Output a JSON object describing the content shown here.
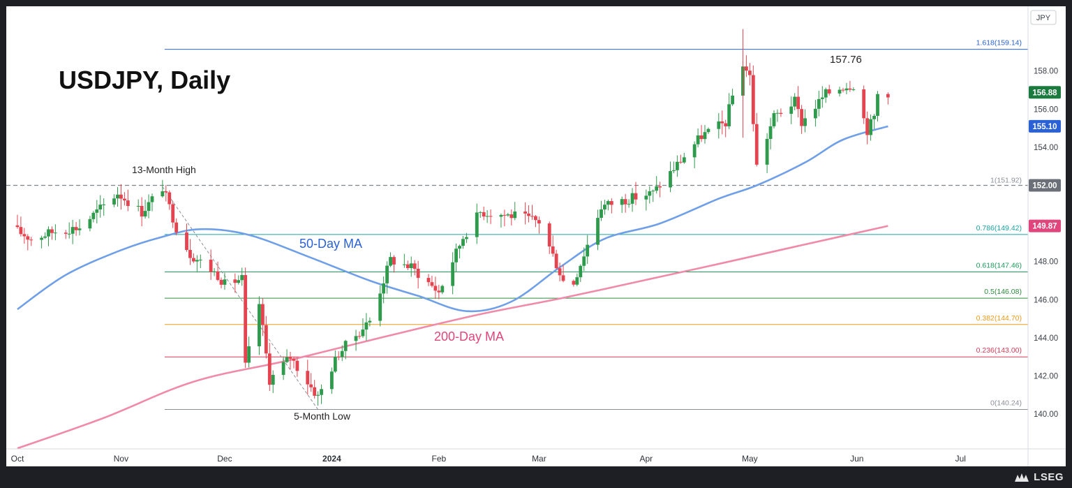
{
  "chart_data": {
    "type": "candlestick",
    "title": "USDJPY, Daily",
    "currency": "JPY",
    "ylim": [
      137.9,
      160.6
    ],
    "y_ticks": [
      "140.00",
      "142.00",
      "144.00",
      "146.00",
      "148.00",
      "150.00",
      "152.00",
      "154.00",
      "156.00",
      "158.00"
    ],
    "x_ticks": [
      "Oct",
      "Nov",
      "Dec",
      "2024",
      "Feb",
      "Mar",
      "Apr",
      "May",
      "Jun",
      "Jul"
    ],
    "price_badges": [
      {
        "value": "156.88",
        "color": "#1b7a3e"
      },
      {
        "value": "155.10",
        "color": "#2a62d6"
      },
      {
        "value": "152.00",
        "color": "#6b7078"
      },
      {
        "value": "149.87",
        "color": "#e0457b"
      }
    ],
    "fib_levels": [
      {
        "label": "1.618(159.14)",
        "value": 159.14,
        "color": "#2a62d6"
      },
      {
        "label": "1(151.92)",
        "value": 151.92,
        "color": "#8a8f98"
      },
      {
        "label": "0.786(149.42)",
        "value": 149.42,
        "color": "#1aa3a3"
      },
      {
        "label": "0.618(147.46)",
        "value": 147.46,
        "color": "#1e9b5b"
      },
      {
        "label": "0.5(146.08)",
        "value": 146.08,
        "color": "#2e8b3e"
      },
      {
        "label": "0.382(144.70)",
        "value": 144.7,
        "color": "#f09a1a"
      },
      {
        "label": "0.236(143.00)",
        "value": 143.0,
        "color": "#d63a57"
      },
      {
        "label": "0(140.24)",
        "value": 140.24,
        "color": "#8a8f98"
      }
    ],
    "horizontal_dashed": {
      "value": 152.0,
      "label": "13-Month High"
    },
    "annotations": [
      {
        "text": "13-Month High"
      },
      {
        "text": "5-Month Low"
      },
      {
        "text": "157.76"
      },
      {
        "text": "50-Day MA",
        "color": "#2a62d6"
      },
      {
        "text": "200-Day MA",
        "color": "#e0457b"
      }
    ],
    "series": [
      {
        "name": "50-Day MA",
        "color": "#6f9fe8",
        "points": [
          [
            "Oct 2",
            145.5
          ],
          [
            "Oct 16",
            147.3
          ],
          [
            "Nov 1",
            148.6
          ],
          [
            "Nov 13",
            149.3
          ],
          [
            "Nov 24",
            149.7
          ],
          [
            "Dec 8",
            149.4
          ],
          [
            "Dec 26",
            148.2
          ],
          [
            "Jan 12",
            147.0
          ],
          [
            "Jan 26",
            146.2
          ],
          [
            "Feb 9",
            145.4
          ],
          [
            "Feb 22",
            145.9
          ],
          [
            "Mar 7",
            147.7
          ],
          [
            "Mar 20",
            149.2
          ],
          [
            "Apr 5",
            150.0
          ],
          [
            "Apr 22",
            151.3
          ],
          [
            "May 3",
            152.0
          ],
          [
            "May 17",
            153.2
          ],
          [
            "May 28",
            154.4
          ],
          [
            "Jun 10",
            155.1
          ]
        ]
      },
      {
        "name": "200-Day MA",
        "color": "#f08aa8",
        "points": [
          [
            "Oct 2",
            138.2
          ],
          [
            "Oct 27",
            139.8
          ],
          [
            "Nov 22",
            141.7
          ],
          [
            "Dec 19",
            142.8
          ],
          [
            "Jan 15",
            144.0
          ],
          [
            "Feb 12",
            145.2
          ],
          [
            "Mar 8",
            146.1
          ],
          [
            "Apr 5",
            147.2
          ],
          [
            "Apr 25",
            148.0
          ],
          [
            "May 17",
            148.9
          ],
          [
            "Jun 10",
            149.87
          ]
        ]
      }
    ],
    "ohlc_anchors": [
      [
        "Oct 2",
        149.6
      ],
      [
        "Oct 6",
        149.2
      ],
      [
        "Oct 13",
        149.6
      ],
      [
        "Oct 20",
        149.8
      ],
      [
        "Oct 31",
        151.6
      ],
      [
        "Nov 7",
        150.6
      ],
      [
        "Nov 13",
        151.9
      ],
      [
        "Nov 17",
        149.8
      ],
      [
        "Nov 21",
        148.4
      ],
      [
        "Nov 29",
        147.3
      ],
      [
        "Dec 1",
        146.8
      ],
      [
        "Dec 6",
        147.1
      ],
      [
        "Dec 7",
        142.5
      ],
      [
        "Dec 11",
        145.8
      ],
      [
        "Dec 14",
        141.8
      ],
      [
        "Dec 20",
        143.0
      ],
      [
        "Dec 28",
        140.9
      ],
      [
        "Jan 3",
        143.2
      ],
      [
        "Jan 12",
        144.9
      ],
      [
        "Jan 18",
        148.1
      ],
      [
        "Jan 24",
        147.7
      ],
      [
        "Feb 1",
        146.4
      ],
      [
        "Feb 8",
        149.3
      ],
      [
        "Feb 13",
        150.6
      ],
      [
        "Feb 23",
        150.4
      ],
      [
        "Mar 1",
        150.1
      ],
      [
        "Mar 8",
        147.0
      ],
      [
        "Mar 11",
        146.9
      ],
      [
        "Mar 19",
        150.9
      ],
      [
        "Mar 27",
        151.3
      ],
      [
        "Apr 3",
        151.6
      ],
      [
        "Apr 10",
        153.1
      ],
      [
        "Apr 17",
        154.6
      ],
      [
        "Apr 24",
        155.3
      ],
      [
        "Apr 26",
        156.7
      ],
      [
        "Apr 29",
        158.4
      ],
      [
        "May 1",
        157.7
      ],
      [
        "May 3",
        153.0
      ],
      [
        "May 8",
        155.6
      ],
      [
        "May 14",
        156.4
      ],
      [
        "May 16",
        155.3
      ],
      [
        "May 23",
        156.8
      ],
      [
        "May 28",
        157.2
      ],
      [
        "May 31",
        157.3
      ],
      [
        "Jun 4",
        154.9
      ],
      [
        "Jun 6",
        155.6
      ],
      [
        "Jun 7",
        156.8
      ],
      [
        "Jun 10",
        156.88
      ]
    ]
  }
}
